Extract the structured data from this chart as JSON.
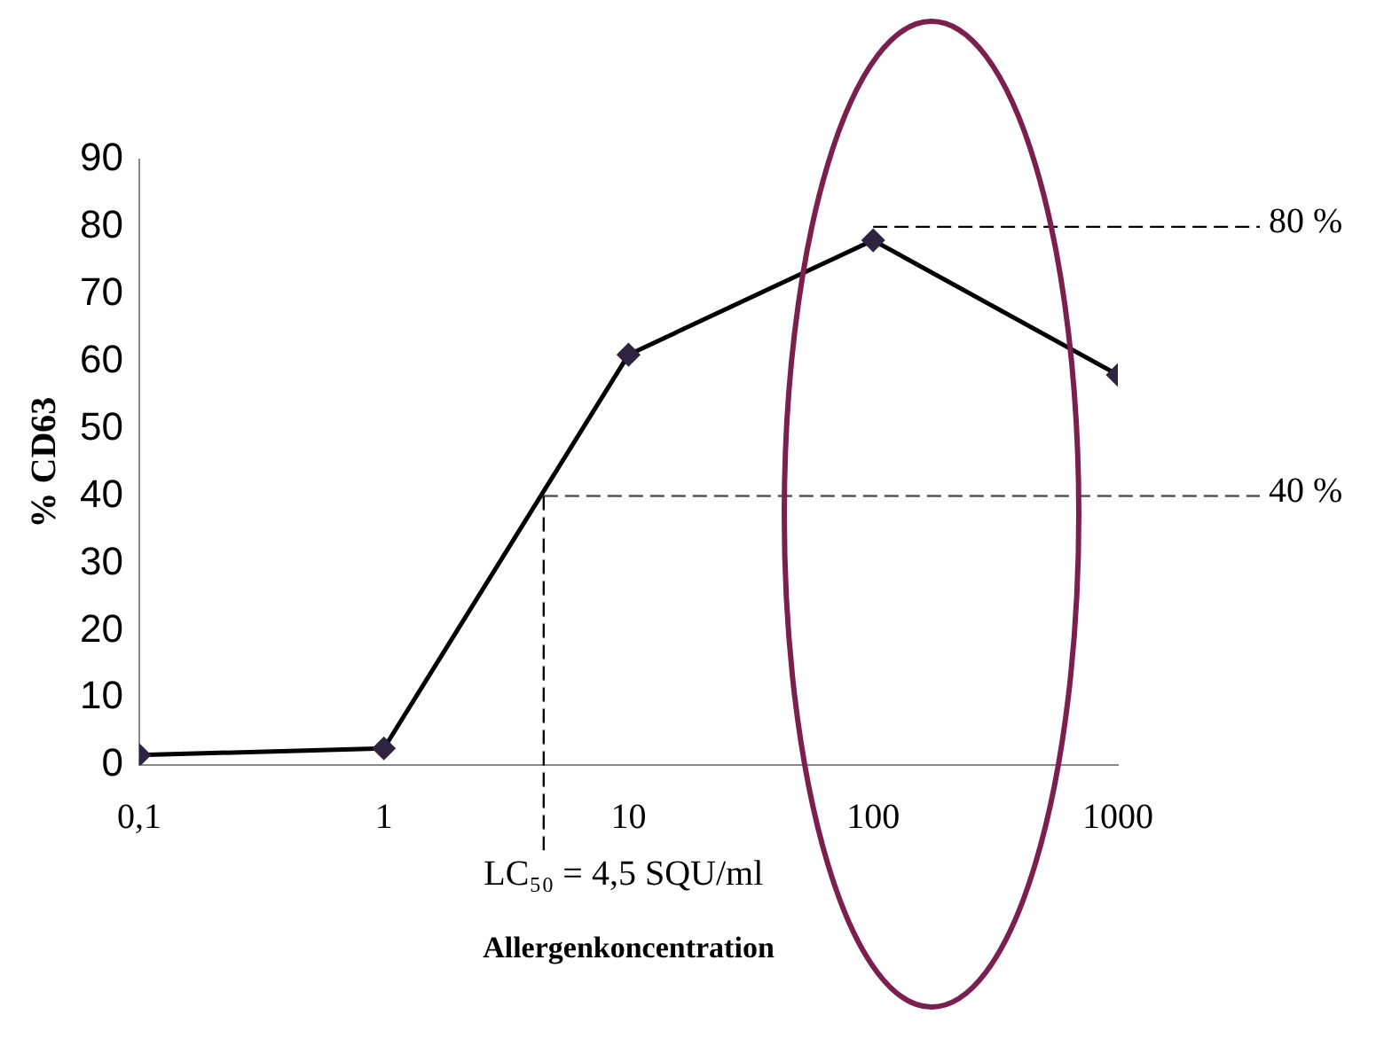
{
  "chart_data": {
    "type": "line",
    "xlabel": "Allergenkoncentration",
    "ylabel": "% CD63",
    "log": "x",
    "x": [
      0.1,
      1,
      10,
      100,
      1000
    ],
    "series": [
      {
        "color": "#000000",
        "values": [
          1.5,
          2.5,
          61,
          78,
          58
        ]
      }
    ],
    "xlim": [
      0.1,
      1000
    ],
    "xticks": [
      {
        "value": 0.1,
        "label": "0,1"
      },
      1,
      10,
      100,
      1000
    ],
    "ylim": [
      0,
      90
    ],
    "yticks": [
      0,
      10,
      20,
      30,
      40,
      50,
      60,
      70,
      80,
      90
    ],
    "ref_lines": [
      {
        "axis": "y",
        "value": 80,
        "label": "80 %",
        "line_style": "dashed",
        "color": "#000000"
      },
      {
        "axis": "y",
        "value": 40,
        "label": "40 %",
        "line_style": "dashed",
        "color": "#555555"
      },
      {
        "axis": "x",
        "value": 4.5,
        "label": "LC₅₀ = 4,5 SQU/ml",
        "line_style": "dashed",
        "color": "#000000"
      }
    ],
    "grid": false,
    "legend": false,
    "marker": "diamond",
    "line_style": "solid"
  }
}
